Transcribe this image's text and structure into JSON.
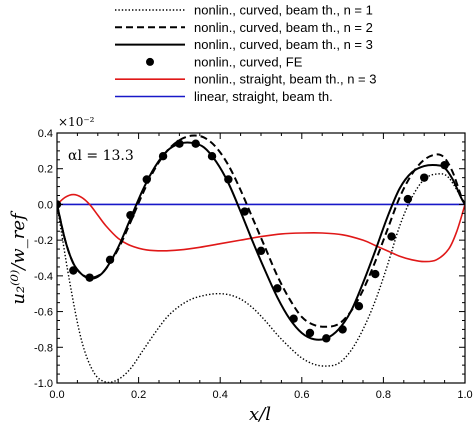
{
  "chart_data": {
    "type": "line",
    "annotation": "αl = 13.3",
    "exponent_label": "×10⁻²",
    "xlabel": "x/l",
    "ylabel": "u₂⁽⁰⁾/w_ref",
    "xlim": [
      0.0,
      1.0
    ],
    "ylim": [
      -1.0,
      0.4
    ],
    "xticks": [
      0.0,
      0.2,
      0.4,
      0.6,
      0.8,
      1.0
    ],
    "yticks": [
      0.4,
      0.2,
      0.0,
      -0.2,
      -0.4,
      -0.6,
      -0.8,
      -1.0
    ],
    "xtick_labels": [
      "0.0",
      "0.2",
      "0.4",
      "0.6",
      "0.8",
      "1.0"
    ],
    "ytick_labels": [
      "0.4",
      "0.2",
      "0.0",
      "-0.2",
      "-0.4",
      "-0.6",
      "-0.8",
      "-1.0"
    ],
    "grid": false,
    "legend_position": "top",
    "series": [
      {
        "name": "nonlin., curved, beam th., n = 1",
        "style": "dotted",
        "color": "#000000",
        "x": [
          0.0,
          0.03,
          0.06,
          0.09,
          0.12,
          0.15,
          0.18,
          0.21,
          0.24,
          0.27,
          0.3,
          0.33,
          0.36,
          0.39,
          0.42,
          0.45,
          0.48,
          0.51,
          0.54,
          0.57,
          0.6,
          0.63,
          0.66,
          0.69,
          0.72,
          0.75,
          0.78,
          0.81,
          0.84,
          0.87,
          0.9,
          0.93,
          0.96,
          1.0
        ],
        "y": [
          0.0,
          -0.42,
          -0.76,
          -0.94,
          -0.995,
          -0.98,
          -0.92,
          -0.82,
          -0.72,
          -0.63,
          -0.57,
          -0.53,
          -0.51,
          -0.5,
          -0.505,
          -0.53,
          -0.58,
          -0.65,
          -0.73,
          -0.8,
          -0.86,
          -0.895,
          -0.905,
          -0.89,
          -0.82,
          -0.7,
          -0.54,
          -0.34,
          -0.12,
          0.04,
          0.14,
          0.17,
          0.15,
          0.0
        ]
      },
      {
        "name": "nonlin., curved, beam th., n = 2",
        "style": "dashed",
        "color": "#000000",
        "x": [
          0.0,
          0.02,
          0.04,
          0.06,
          0.08,
          0.1,
          0.12,
          0.15,
          0.18,
          0.21,
          0.24,
          0.27,
          0.3,
          0.33,
          0.36,
          0.39,
          0.42,
          0.45,
          0.48,
          0.51,
          0.54,
          0.57,
          0.6,
          0.63,
          0.66,
          0.69,
          0.72,
          0.75,
          0.78,
          0.81,
          0.84,
          0.87,
          0.9,
          0.93,
          0.95,
          0.97,
          0.99,
          1.0
        ],
        "y": [
          0.0,
          -0.2,
          -0.33,
          -0.39,
          -0.41,
          -0.4,
          -0.36,
          -0.25,
          -0.1,
          0.06,
          0.2,
          0.3,
          0.36,
          0.385,
          0.375,
          0.32,
          0.22,
          0.08,
          -0.08,
          -0.24,
          -0.4,
          -0.53,
          -0.63,
          -0.675,
          -0.685,
          -0.67,
          -0.6,
          -0.48,
          -0.32,
          -0.14,
          0.04,
          0.17,
          0.25,
          0.28,
          0.26,
          0.18,
          0.05,
          0.0
        ]
      },
      {
        "name": "nonlin., curved, beam th., n = 3",
        "style": "solid",
        "color": "#000000",
        "x": [
          0.0,
          0.02,
          0.04,
          0.06,
          0.08,
          0.1,
          0.12,
          0.15,
          0.18,
          0.21,
          0.24,
          0.27,
          0.3,
          0.33,
          0.36,
          0.39,
          0.42,
          0.45,
          0.48,
          0.51,
          0.54,
          0.57,
          0.6,
          0.63,
          0.66,
          0.69,
          0.72,
          0.75,
          0.78,
          0.81,
          0.84,
          0.87,
          0.9,
          0.93,
          0.95,
          0.97,
          0.99,
          1.0
        ],
        "y": [
          0.0,
          -0.2,
          -0.33,
          -0.39,
          -0.415,
          -0.405,
          -0.36,
          -0.24,
          -0.08,
          0.08,
          0.21,
          0.3,
          0.34,
          0.345,
          0.32,
          0.24,
          0.12,
          -0.04,
          -0.21,
          -0.37,
          -0.52,
          -0.64,
          -0.72,
          -0.755,
          -0.75,
          -0.7,
          -0.6,
          -0.44,
          -0.26,
          -0.07,
          0.09,
          0.18,
          0.215,
          0.22,
          0.205,
          0.14,
          0.04,
          0.0
        ]
      },
      {
        "name": "nonlin., curved, FE",
        "style": "markers",
        "color": "#000000",
        "x": [
          0.0,
          0.04,
          0.08,
          0.13,
          0.18,
          0.22,
          0.26,
          0.3,
          0.34,
          0.38,
          0.42,
          0.46,
          0.5,
          0.54,
          0.58,
          0.62,
          0.66,
          0.7,
          0.74,
          0.78,
          0.82,
          0.86,
          0.9,
          0.95
        ],
        "y": [
          0.0,
          -0.37,
          -0.41,
          -0.31,
          -0.06,
          0.14,
          0.27,
          0.34,
          0.34,
          0.27,
          0.14,
          -0.04,
          -0.26,
          -0.47,
          -0.64,
          -0.72,
          -0.75,
          -0.7,
          -0.57,
          -0.39,
          -0.18,
          0.03,
          0.15,
          0.22
        ]
      },
      {
        "name": "nonlin., straight, beam th., n = 3",
        "style": "solid",
        "color": "#e01818",
        "x": [
          0.0,
          0.02,
          0.04,
          0.06,
          0.08,
          0.1,
          0.12,
          0.15,
          0.18,
          0.22,
          0.26,
          0.3,
          0.35,
          0.4,
          0.45,
          0.5,
          0.55,
          0.6,
          0.65,
          0.7,
          0.75,
          0.78,
          0.81,
          0.84,
          0.87,
          0.9,
          0.93,
          0.96,
          0.98,
          1.0
        ],
        "y": [
          0.0,
          0.04,
          0.055,
          0.04,
          0.0,
          -0.06,
          -0.12,
          -0.19,
          -0.23,
          -0.255,
          -0.26,
          -0.255,
          -0.24,
          -0.22,
          -0.2,
          -0.18,
          -0.165,
          -0.16,
          -0.16,
          -0.17,
          -0.2,
          -0.23,
          -0.26,
          -0.29,
          -0.31,
          -0.32,
          -0.31,
          -0.25,
          -0.15,
          0.0
        ]
      },
      {
        "name": "linear, straight, beam th.",
        "style": "solid",
        "color": "#1818c8",
        "x": [
          0.0,
          1.0
        ],
        "y": [
          0.0,
          0.0
        ]
      }
    ]
  }
}
